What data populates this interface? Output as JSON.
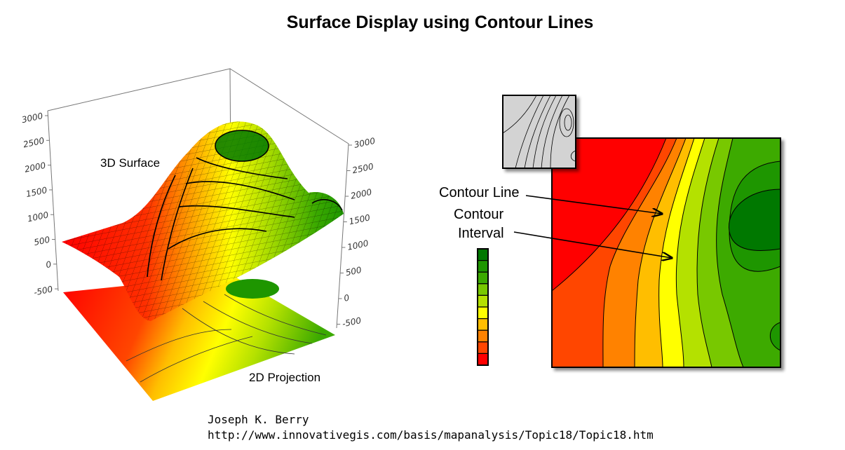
{
  "title": "Surface Display using Contour Lines",
  "surface_label": "3D Surface",
  "projection_label": "2D Projection",
  "left_axis_ticks": [
    "3000",
    "2500",
    "2000",
    "1500",
    "1000",
    "500",
    "0",
    "-500"
  ],
  "right_axis_ticks": [
    "3000",
    "2500",
    "2000",
    "1500",
    "1000",
    "500",
    "0",
    "-500"
  ],
  "contour_line_label": "Contour Line",
  "contour_interval_label": [
    "Contour",
    "Interval"
  ],
  "legend_colors": [
    "#007800",
    "#1e9600",
    "#3caa00",
    "#78c800",
    "#b4e100",
    "#ffff00",
    "#ffbe00",
    "#ff8200",
    "#ff4600",
    "#ff0000"
  ],
  "credit": {
    "author": "Joseph K. Berry",
    "url": "http://www.innovativegis.com/basis/mapanalysis/Topic18/Topic18.htm"
  }
}
